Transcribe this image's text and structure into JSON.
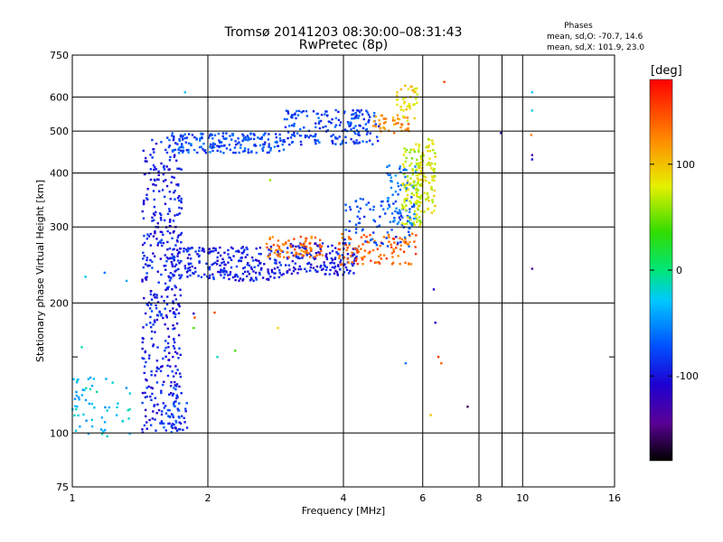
{
  "chart_data": {
    "type": "scatter",
    "title": "Tromsø 20141203 08:30:00–08:31:43",
    "subtitle": "RwPretec (8p)",
    "xlabel": "Frequency [MHz]",
    "ylabel": "Stationary phase Virtual Height [km]",
    "x_scale": "log",
    "y_scale": "log",
    "xlim": [
      1,
      16
    ],
    "ylim": [
      75,
      750
    ],
    "x_ticks": [
      1,
      2,
      4,
      6,
      8,
      10,
      16
    ],
    "x_minor_ticks": [
      9
    ],
    "y_ticks": [
      75,
      100,
      200,
      300,
      400,
      500,
      600,
      750
    ],
    "y_minor_ticks": [
      150
    ],
    "grid": true,
    "stats": {
      "heading": "Phases",
      "line_o": "mean, sd,O: -70.7, 14.6",
      "line_x": "mean, sd,X: 101.9, 23.0"
    },
    "colorbar": {
      "label": "[deg]",
      "range": [
        -180,
        180
      ],
      "ticks": [
        100,
        0,
        -100
      ],
      "colormap": "rainbow"
    },
    "traces": [
      {
        "x_range": [
          1.43,
          1.75
        ],
        "y_range": [
          100,
          480
        ],
        "phase": -95,
        "count": 420
      },
      {
        "x_range": [
          1.62,
          2.95
        ],
        "y_range": [
          445,
          495
        ],
        "phase": -75,
        "count": 190
      },
      {
        "x_range": [
          2.95,
          4.8
        ],
        "y_range": [
          465,
          560
        ],
        "phase": -80,
        "count": 180
      },
      {
        "x_range": [
          4.6,
          5.6
        ],
        "y_range": [
          495,
          545
        ],
        "phase": 120,
        "count": 45
      },
      {
        "x_range": [
          5.2,
          5.85
        ],
        "y_range": [
          520,
          640
        ],
        "phase": 90,
        "count": 40
      },
      {
        "x_range": [
          1.65,
          2.95
        ],
        "y_range": [
          225,
          270
        ],
        "phase": -95,
        "count": 240
      },
      {
        "x_range": [
          2.95,
          4.3
        ],
        "y_range": [
          232,
          275
        ],
        "phase": -100,
        "count": 150
      },
      {
        "x_range": [
          2.7,
          3.6
        ],
        "y_range": [
          255,
          285
        ],
        "phase": 135,
        "count": 75
      },
      {
        "x_range": [
          3.9,
          5.8
        ],
        "y_range": [
          245,
          290
        ],
        "phase": 140,
        "count": 110
      },
      {
        "x_range": [
          4.0,
          5.7
        ],
        "y_range": [
          270,
          350
        ],
        "phase": -75,
        "count": 80
      },
      {
        "x_range": [
          5.0,
          5.8
        ],
        "y_range": [
          300,
          420
        ],
        "phase": -60,
        "count": 70
      },
      {
        "x_range": [
          5.4,
          6.0
        ],
        "y_range": [
          300,
          460
        ],
        "phase": 70,
        "count": 90
      },
      {
        "x_range": [
          5.8,
          6.4
        ],
        "y_range": [
          320,
          480
        ],
        "phase": 80,
        "count": 110
      },
      {
        "x_range": [
          1.0,
          1.35
        ],
        "y_range": [
          98,
          135
        ],
        "phase": -30,
        "count": 60
      },
      {
        "x_range": [
          1.58,
          1.8
        ],
        "y_range": [
          100,
          130
        ],
        "phase": -80,
        "count": 40
      }
    ],
    "scatter_points": [
      {
        "x": 1.78,
        "y": 615,
        "phase": -30
      },
      {
        "x": 2.75,
        "y": 385,
        "phase": 60
      },
      {
        "x": 1.86,
        "y": 189,
        "phase": -110
      },
      {
        "x": 1.87,
        "y": 185,
        "phase": 150
      },
      {
        "x": 2.07,
        "y": 190,
        "phase": 150
      },
      {
        "x": 2.86,
        "y": 175,
        "phase": 90
      },
      {
        "x": 2.3,
        "y": 155,
        "phase": 40
      },
      {
        "x": 2.1,
        "y": 150,
        "phase": -15
      },
      {
        "x": 1.86,
        "y": 175,
        "phase": 40
      },
      {
        "x": 5.5,
        "y": 145,
        "phase": -60
      },
      {
        "x": 6.35,
        "y": 215,
        "phase": -110
      },
      {
        "x": 6.4,
        "y": 180,
        "phase": -110
      },
      {
        "x": 6.5,
        "y": 150,
        "phase": 160
      },
      {
        "x": 6.6,
        "y": 145,
        "phase": 140
      },
      {
        "x": 6.7,
        "y": 650,
        "phase": 150
      },
      {
        "x": 6.25,
        "y": 110,
        "phase": 100
      },
      {
        "x": 7.55,
        "y": 115,
        "phase": -160
      },
      {
        "x": 8.95,
        "y": 495,
        "phase": -120
      },
      {
        "x": 10.45,
        "y": 490,
        "phase": 130
      },
      {
        "x": 10.5,
        "y": 440,
        "phase": -130
      },
      {
        "x": 10.5,
        "y": 430,
        "phase": -110
      },
      {
        "x": 10.5,
        "y": 558,
        "phase": -20
      },
      {
        "x": 10.5,
        "y": 615,
        "phase": -30
      },
      {
        "x": 10.5,
        "y": 240,
        "phase": -140
      },
      {
        "x": 1.07,
        "y": 230,
        "phase": -30
      },
      {
        "x": 1.18,
        "y": 235,
        "phase": -60
      },
      {
        "x": 1.32,
        "y": 225,
        "phase": -40
      },
      {
        "x": 1.05,
        "y": 158,
        "phase": -10
      }
    ]
  }
}
